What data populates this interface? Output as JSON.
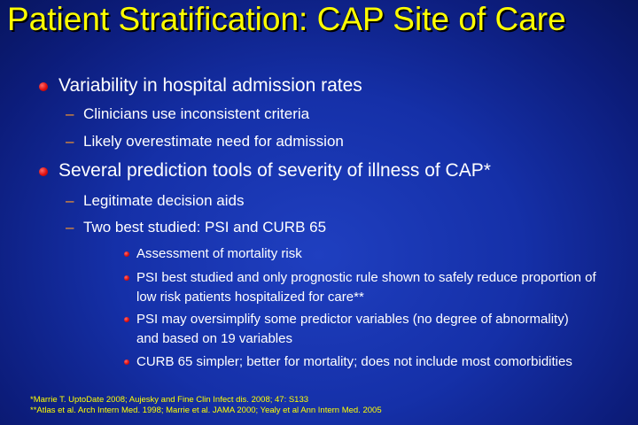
{
  "title": "Patient Stratification: CAP Site of Care",
  "bullets": {
    "b1": "Variability in hospital admission rates",
    "b1_sub1": "Clinicians use inconsistent criteria",
    "b1_sub2": "Likely overestimate need for admission",
    "b2": "Several prediction tools of severity of illness of CAP*",
    "b2_sub1": "Legitimate decision aids",
    "b2_sub2": "Two best studied: PSI and CURB 65",
    "b2_sub2_items": [
      "Assessment of mortality risk",
      "PSI best studied and only prognostic rule shown to safely reduce proportion of low risk patients hospitalized for care**",
      "PSI may oversimplify some predictor variables (no degree of abnormality) and based on 19 variables",
      "CURB 65 simpler; better for mortality; does not include most comorbidities"
    ]
  },
  "dash_symbol": "–",
  "footnotes": [
    "*Marrie T. UptoDate 2008; Aujesky and Fine Clin Infect dis. 2008; 47: S133",
    "**Atlas et al. Arch Intern Med. 1998; Marrie et al. JAMA 2000; Yealy et al Ann Intern Med. 2005"
  ],
  "colors": {
    "title": "#ffff00",
    "text": "#ffffff",
    "bullet": "#e01010",
    "dash": "#ff9a2a",
    "background": "#1530a8"
  }
}
